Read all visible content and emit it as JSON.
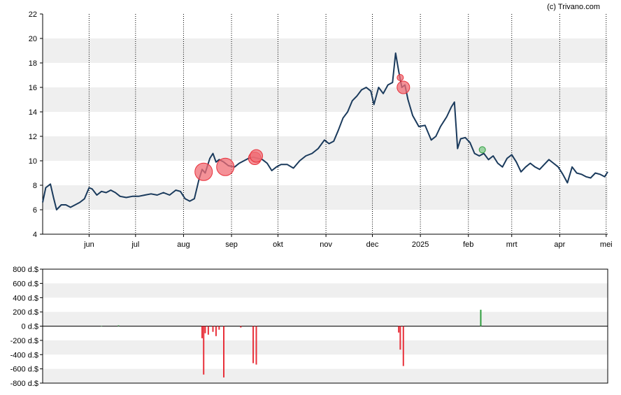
{
  "copyright": "(c) Trivano.com",
  "colors": {
    "line": "#1a3a5c",
    "band": "#efefef",
    "sell": "#e8303a",
    "sell_fill": "#f06c74",
    "buy": "#2e9e3e",
    "buy_fill": "#7fc98a",
    "axis": "#000000"
  },
  "chart_data": [
    {
      "type": "line",
      "title": "",
      "ylim": [
        4,
        22
      ],
      "yticks": [
        "4",
        "6",
        "8",
        "10",
        "12",
        "14",
        "16",
        "18",
        "20",
        "22"
      ],
      "yticks_values": [
        4,
        6,
        8,
        10,
        12,
        14,
        16,
        18,
        20,
        22
      ],
      "xticks": [
        {
          "label": "jun",
          "date": "2024-06-01"
        },
        {
          "label": "jul",
          "date": "2024-07-01"
        },
        {
          "label": "aug",
          "date": "2024-08-01"
        },
        {
          "label": "sep",
          "date": "2024-09-01"
        },
        {
          "label": "okt",
          "date": "2024-10-01"
        },
        {
          "label": "nov",
          "date": "2024-11-01"
        },
        {
          "label": "dec",
          "date": "2024-12-01"
        },
        {
          "label": "2025",
          "date": "2025-01-01"
        },
        {
          "label": "feb",
          "date": "2025-02-01"
        },
        {
          "label": "mrt",
          "date": "2025-03-01"
        },
        {
          "label": "apr",
          "date": "2025-04-01"
        },
        {
          "label": "mei",
          "date": "2025-05-01"
        }
      ],
      "xlim": [
        "2024-05-02",
        "2025-05-02"
      ],
      "grid": "vertical dotted at month starts, alternating horizontal bands",
      "series": [
        {
          "values": [
            [
              "2024-05-02",
              6.6
            ],
            [
              "2024-05-04",
              7.8
            ],
            [
              "2024-05-07",
              8.1
            ],
            [
              "2024-05-09",
              7.0
            ],
            [
              "2024-05-11",
              6.0
            ],
            [
              "2024-05-14",
              6.4
            ],
            [
              "2024-05-17",
              6.4
            ],
            [
              "2024-05-20",
              6.2
            ],
            [
              "2024-05-23",
              6.4
            ],
            [
              "2024-05-26",
              6.6
            ],
            [
              "2024-05-29",
              6.9
            ],
            [
              "2024-06-01",
              7.8
            ],
            [
              "2024-06-03",
              7.7
            ],
            [
              "2024-06-06",
              7.2
            ],
            [
              "2024-06-09",
              7.5
            ],
            [
              "2024-06-12",
              7.4
            ],
            [
              "2024-06-15",
              7.6
            ],
            [
              "2024-06-18",
              7.4
            ],
            [
              "2024-06-21",
              7.1
            ],
            [
              "2024-06-25",
              7.0
            ],
            [
              "2024-06-29",
              7.1
            ],
            [
              "2024-07-03",
              7.1
            ],
            [
              "2024-07-07",
              7.2
            ],
            [
              "2024-07-11",
              7.3
            ],
            [
              "2024-07-15",
              7.2
            ],
            [
              "2024-07-19",
              7.4
            ],
            [
              "2024-07-23",
              7.2
            ],
            [
              "2024-07-27",
              7.6
            ],
            [
              "2024-07-30",
              7.5
            ],
            [
              "2024-08-02",
              6.9
            ],
            [
              "2024-08-05",
              6.7
            ],
            [
              "2024-08-08",
              6.9
            ],
            [
              "2024-08-11",
              8.5
            ],
            [
              "2024-08-13",
              9.3
            ],
            [
              "2024-08-15",
              9.0
            ],
            [
              "2024-08-18",
              10.2
            ],
            [
              "2024-08-20",
              10.6
            ],
            [
              "2024-08-22",
              9.9
            ],
            [
              "2024-08-24",
              10.1
            ],
            [
              "2024-08-27",
              9.9
            ],
            [
              "2024-08-30",
              9.6
            ],
            [
              "2024-09-03",
              9.5
            ],
            [
              "2024-09-06",
              9.8
            ],
            [
              "2024-09-09",
              10.0
            ],
            [
              "2024-09-12",
              10.2
            ],
            [
              "2024-09-15",
              10.3
            ],
            [
              "2024-09-18",
              10.2
            ],
            [
              "2024-09-21",
              10.1
            ],
            [
              "2024-09-24",
              9.8
            ],
            [
              "2024-09-27",
              9.2
            ],
            [
              "2024-09-30",
              9.5
            ],
            [
              "2024-10-03",
              9.7
            ],
            [
              "2024-10-07",
              9.7
            ],
            [
              "2024-10-11",
              9.4
            ],
            [
              "2024-10-15",
              10.0
            ],
            [
              "2024-10-19",
              10.4
            ],
            [
              "2024-10-23",
              10.6
            ],
            [
              "2024-10-27",
              11.0
            ],
            [
              "2024-10-31",
              11.7
            ],
            [
              "2024-11-03",
              11.4
            ],
            [
              "2024-11-06",
              11.6
            ],
            [
              "2024-11-09",
              12.5
            ],
            [
              "2024-11-12",
              13.5
            ],
            [
              "2024-11-15",
              14.0
            ],
            [
              "2024-11-18",
              14.9
            ],
            [
              "2024-11-21",
              15.3
            ],
            [
              "2024-11-24",
              15.8
            ],
            [
              "2024-11-27",
              16.0
            ],
            [
              "2024-11-30",
              15.7
            ],
            [
              "2024-12-02",
              14.6
            ],
            [
              "2024-12-05",
              16.0
            ],
            [
              "2024-12-08",
              15.5
            ],
            [
              "2024-12-11",
              16.2
            ],
            [
              "2024-12-14",
              16.4
            ],
            [
              "2024-12-16",
              18.8
            ],
            [
              "2024-12-18",
              17.3
            ],
            [
              "2024-12-20",
              16.0
            ],
            [
              "2024-12-22",
              16.2
            ],
            [
              "2024-12-24",
              15.0
            ],
            [
              "2024-12-27",
              13.7
            ],
            [
              "2024-12-31",
              12.8
            ],
            [
              "2025-01-04",
              12.9
            ],
            [
              "2025-01-08",
              11.7
            ],
            [
              "2025-01-11",
              12.0
            ],
            [
              "2025-01-14",
              12.8
            ],
            [
              "2025-01-18",
              13.6
            ],
            [
              "2025-01-21",
              14.4
            ],
            [
              "2025-01-23",
              14.8
            ],
            [
              "2025-01-25",
              11.0
            ],
            [
              "2025-01-27",
              11.8
            ],
            [
              "2025-01-30",
              11.9
            ],
            [
              "2025-02-02",
              11.5
            ],
            [
              "2025-02-05",
              10.6
            ],
            [
              "2025-02-08",
              10.4
            ],
            [
              "2025-02-11",
              10.6
            ],
            [
              "2025-02-14",
              10.1
            ],
            [
              "2025-02-17",
              10.4
            ],
            [
              "2025-02-20",
              9.8
            ],
            [
              "2025-02-23",
              9.5
            ],
            [
              "2025-02-26",
              10.2
            ],
            [
              "2025-03-01",
              10.5
            ],
            [
              "2025-03-04",
              9.9
            ],
            [
              "2025-03-07",
              9.1
            ],
            [
              "2025-03-10",
              9.5
            ],
            [
              "2025-03-13",
              9.8
            ],
            [
              "2025-03-16",
              9.5
            ],
            [
              "2025-03-19",
              9.3
            ],
            [
              "2025-03-22",
              9.7
            ],
            [
              "2025-03-25",
              10.1
            ],
            [
              "2025-03-28",
              9.8
            ],
            [
              "2025-03-31",
              9.5
            ],
            [
              "2025-04-03",
              8.9
            ],
            [
              "2025-04-06",
              8.2
            ],
            [
              "2025-04-09",
              9.5
            ],
            [
              "2025-04-12",
              9.0
            ],
            [
              "2025-04-15",
              8.9
            ],
            [
              "2025-04-18",
              8.7
            ],
            [
              "2025-04-21",
              8.6
            ],
            [
              "2025-04-24",
              9.0
            ],
            [
              "2025-04-27",
              8.9
            ],
            [
              "2025-04-30",
              8.7
            ],
            [
              "2025-05-02",
              9.1
            ]
          ]
        }
      ],
      "markers": [
        {
          "date": "2024-08-14",
          "value": 9.1,
          "kind": "sell",
          "size": "large"
        },
        {
          "date": "2024-08-28",
          "value": 9.5,
          "kind": "sell",
          "size": "large"
        },
        {
          "date": "2024-09-16",
          "value": 10.2,
          "kind": "sell",
          "size": "medium"
        },
        {
          "date": "2024-09-17",
          "value": 10.4,
          "kind": "sell",
          "size": "medium"
        },
        {
          "date": "2024-12-19",
          "value": 16.8,
          "kind": "sell",
          "size": "small"
        },
        {
          "date": "2024-12-21",
          "value": 16.0,
          "kind": "sell",
          "size": "medium"
        },
        {
          "date": "2025-02-10",
          "value": 10.9,
          "kind": "buy",
          "size": "small"
        }
      ]
    },
    {
      "type": "bar",
      "title": "",
      "ylim": [
        -800,
        800
      ],
      "yticks": [
        "800 d.$",
        "600 d.$",
        "400 d.$",
        "200 d.$",
        "0 d.$",
        "-200 d.$",
        "-400 d.$",
        "-600 d.$",
        "-800 d.$"
      ],
      "yticks_values": [
        800,
        600,
        400,
        200,
        0,
        -200,
        -400,
        -600,
        -800
      ],
      "bars": [
        {
          "date": "2024-06-09",
          "value": 5
        },
        {
          "date": "2024-06-20",
          "value": 10
        },
        {
          "date": "2024-08-13",
          "value": -170
        },
        {
          "date": "2024-08-14",
          "value": -680
        },
        {
          "date": "2024-08-15",
          "value": -100
        },
        {
          "date": "2024-08-17",
          "value": -120
        },
        {
          "date": "2024-08-20",
          "value": -80
        },
        {
          "date": "2024-08-22",
          "value": -140
        },
        {
          "date": "2024-08-24",
          "value": -50
        },
        {
          "date": "2024-08-27",
          "value": -720
        },
        {
          "date": "2024-09-07",
          "value": -20
        },
        {
          "date": "2024-09-15",
          "value": -520
        },
        {
          "date": "2024-09-17",
          "value": -540
        },
        {
          "date": "2024-12-18",
          "value": -90
        },
        {
          "date": "2024-12-19",
          "value": -330
        },
        {
          "date": "2024-12-21",
          "value": -560
        },
        {
          "date": "2025-02-09",
          "value": 230
        }
      ]
    }
  ]
}
